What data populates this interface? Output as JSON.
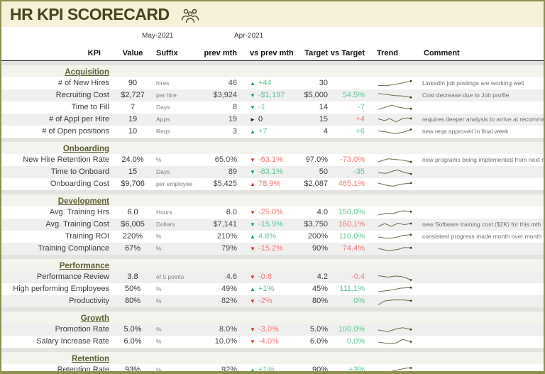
{
  "title": "HR KPI SCORECARD",
  "title_icon": "people-group-icon",
  "dates": {
    "current": "May-2021",
    "previous": "Apr-2021"
  },
  "columns": [
    "KPI",
    "Value",
    "Suffix",
    "prev mth",
    "vs prev mth",
    "Target",
    "vs Target",
    "Trend",
    "Comment"
  ],
  "colors": {
    "titlebar_bg": "#f7f0d9",
    "title_text": "#45451f",
    "border_olive": "#8f8f4f",
    "section_header_text": "#5e5e35",
    "good_arrow": "#00a551",
    "good_text": "#5fc492",
    "bad_arrow": "#e82c2c",
    "bad_text": "#f07878",
    "neutral_text": "#2a2a2a",
    "sparkline": "#6b6b4a",
    "row_shade": "#efefef"
  },
  "chart_data": {
    "type": "table",
    "title": "HR KPI SCORECARD",
    "periods": {
      "current": "May-2021",
      "previous": "Apr-2021"
    },
    "columns": [
      "KPI",
      "Value",
      "Suffix",
      "prev mth",
      "vs prev mth",
      "Target",
      "vs Target",
      "Trend",
      "Comment"
    ]
  },
  "sections": [
    {
      "name": "Acquisition",
      "rows": [
        {
          "kpi": "# of New Hires",
          "value": "90",
          "suffix": "hires",
          "prev": "46",
          "arrow": "up",
          "vs_prev": "+44",
          "vs_prev_tone": "good",
          "target": "30",
          "vs_target": "",
          "vs_target_tone": "good",
          "comment": "LinkedIn job postings are working well",
          "trend": [
            [
              0,
              0.75
            ],
            [
              0.25,
              0.78
            ],
            [
              0.5,
              0.6
            ],
            [
              0.7,
              0.42
            ],
            [
              0.85,
              0.28
            ],
            [
              1,
              0.12
            ]
          ]
        },
        {
          "kpi": "Recruiting Cost",
          "value": "$2,727",
          "suffix": "per hire",
          "prev": "$3,924",
          "arrow": "down",
          "vs_prev": "-$1,197",
          "vs_prev_tone": "good",
          "target": "$5,000",
          "vs_target": "54.5%",
          "vs_target_tone": "good",
          "comment": "Cost decrease due to Job profile",
          "trend": [
            [
              0,
              0.18
            ],
            [
              0.25,
              0.3
            ],
            [
              0.5,
              0.48
            ],
            [
              0.75,
              0.52
            ],
            [
              1,
              0.72
            ]
          ]
        },
        {
          "kpi": "Time to Fill",
          "value": "7",
          "suffix": "Days",
          "prev": "8",
          "arrow": "down",
          "vs_prev": "-1",
          "vs_prev_tone": "good",
          "target": "14",
          "vs_target": "-7",
          "vs_target_tone": "good",
          "comment": "",
          "trend": [
            [
              0,
              0.72
            ],
            [
              0.2,
              0.45
            ],
            [
              0.4,
              0.12
            ],
            [
              0.6,
              0.38
            ],
            [
              0.8,
              0.55
            ],
            [
              1,
              0.62
            ]
          ]
        },
        {
          "kpi": "# of Appl per Hire",
          "value": "19",
          "suffix": "Apps",
          "prev": "19",
          "arrow": "flat",
          "vs_prev": "0",
          "vs_prev_tone": "neutral",
          "target": "15",
          "vs_target": "+4",
          "vs_target_tone": "bad",
          "comment": "requires deeper analysis to arrive at recommendations",
          "trend": [
            [
              0,
              0.35
            ],
            [
              0.2,
              0.6
            ],
            [
              0.35,
              0.3
            ],
            [
              0.55,
              0.78
            ],
            [
              0.75,
              0.3
            ],
            [
              0.9,
              0.22
            ],
            [
              1,
              0.3
            ]
          ]
        },
        {
          "kpi": "# of Open positions",
          "value": "10",
          "suffix": "Reqs",
          "prev": "3",
          "arrow": "up",
          "vs_prev": "+7",
          "vs_prev_tone": "good",
          "target": "4",
          "vs_target": "+6",
          "vs_target_tone": "good",
          "comment": "new reqs approved in final week",
          "trend": [
            [
              0,
              0.35
            ],
            [
              0.25,
              0.5
            ],
            [
              0.5,
              0.72
            ],
            [
              0.75,
              0.55
            ],
            [
              1,
              0.15
            ]
          ]
        }
      ]
    },
    {
      "name": "Onboarding",
      "rows": [
        {
          "kpi": "New Hire Retention Rate",
          "value": "24.0%",
          "suffix": "%",
          "prev": "65.0%",
          "arrow": "down",
          "vs_prev": "-63.1%",
          "vs_prev_tone": "bad",
          "target": "97.0%",
          "vs_target": "-73.0%",
          "vs_target_tone": "bad",
          "comment": "new programs being implemented from next mth",
          "trend": [
            [
              0,
              0.7
            ],
            [
              0.3,
              0.28
            ],
            [
              0.55,
              0.38
            ],
            [
              0.8,
              0.5
            ],
            [
              1,
              0.72
            ]
          ]
        },
        {
          "kpi": "Time to Onboard",
          "value": "15",
          "suffix": "Days",
          "prev": "89",
          "arrow": "down",
          "vs_prev": "-83.1%",
          "vs_prev_tone": "good",
          "target": "50",
          "vs_target": "-35",
          "vs_target_tone": "good",
          "comment": "",
          "trend": [
            [
              0,
              0.55
            ],
            [
              0.25,
              0.62
            ],
            [
              0.45,
              0.3
            ],
            [
              0.6,
              0.15
            ],
            [
              0.8,
              0.5
            ],
            [
              1,
              0.7
            ]
          ]
        },
        {
          "kpi": "Onboarding Cost",
          "value": "$9,706",
          "suffix": "per employee",
          "prev": "$5,425",
          "arrow": "up",
          "vs_prev": "78.9%",
          "vs_prev_tone": "bad",
          "target": "$2,087",
          "vs_target": "465.1%",
          "vs_target_tone": "bad",
          "comment": "",
          "trend": [
            [
              0,
              0.3
            ],
            [
              0.2,
              0.55
            ],
            [
              0.45,
              0.75
            ],
            [
              0.7,
              0.45
            ],
            [
              1,
              0.3
            ]
          ]
        }
      ]
    },
    {
      "name": "Development",
      "rows": [
        {
          "kpi": "Avg. Training Hrs",
          "value": "6.0",
          "suffix": "Hours",
          "prev": "8.0",
          "arrow": "down",
          "vs_prev": "-25.0%",
          "vs_prev_tone": "bad",
          "target": "4.0",
          "vs_target": "150.0%",
          "vs_target_tone": "good",
          "comment": "",
          "trend": [
            [
              0,
              0.8
            ],
            [
              0.25,
              0.55
            ],
            [
              0.45,
              0.6
            ],
            [
              0.65,
              0.3
            ],
            [
              0.8,
              0.2
            ],
            [
              1,
              0.32
            ]
          ]
        },
        {
          "kpi": "Avg. Training Cost",
          "value": "$6,005",
          "suffix": "Dollars",
          "prev": "$7,141",
          "arrow": "down",
          "vs_prev": "-15.9%",
          "vs_prev_tone": "good",
          "target": "$3,750",
          "vs_target": "160.1%",
          "vs_target_tone": "bad",
          "comment": "new Software training cost ($2K) for this mth",
          "trend": [
            [
              0,
              0.7
            ],
            [
              0.2,
              0.3
            ],
            [
              0.4,
              0.7
            ],
            [
              0.6,
              0.25
            ],
            [
              0.8,
              0.45
            ],
            [
              1,
              0.3
            ]
          ]
        },
        {
          "kpi": "Training ROI",
          "value": "220%",
          "suffix": "%",
          "prev": "210%",
          "arrow": "up",
          "vs_prev": "4.8%",
          "vs_prev_tone": "good",
          "target": "200%",
          "vs_target": "110.0%",
          "vs_target_tone": "good",
          "comment": "consistent progress made month over month",
          "trend": [
            [
              0,
              0.5
            ],
            [
              0.25,
              0.68
            ],
            [
              0.5,
              0.6
            ],
            [
              0.75,
              0.28
            ],
            [
              1,
              0.18
            ]
          ]
        },
        {
          "kpi": "Training Compliance",
          "value": "67%",
          "suffix": "%",
          "prev": "79%",
          "arrow": "down",
          "vs_prev": "-15.2%",
          "vs_prev_tone": "bad",
          "target": "90%",
          "vs_target": "74.4%",
          "vs_target_tone": "bad",
          "comment": "",
          "trend": [
            [
              0,
              0.4
            ],
            [
              0.3,
              0.72
            ],
            [
              0.6,
              0.55
            ],
            [
              0.8,
              0.28
            ],
            [
              1,
              0.32
            ]
          ]
        }
      ]
    },
    {
      "name": "Performance",
      "rows": [
        {
          "kpi": "Performance Review",
          "value": "3.8",
          "suffix": "of 5 points",
          "prev": "4.6",
          "arrow": "down",
          "vs_prev": "-0.8",
          "vs_prev_tone": "bad",
          "target": "4.2",
          "vs_target": "-0.4",
          "vs_target_tone": "bad",
          "comment": "",
          "trend": [
            [
              0,
              0.25
            ],
            [
              0.3,
              0.45
            ],
            [
              0.5,
              0.3
            ],
            [
              0.7,
              0.35
            ],
            [
              0.85,
              0.55
            ],
            [
              1,
              0.85
            ]
          ]
        },
        {
          "kpi": "High performing Employees",
          "value": "50%",
          "suffix": "%",
          "prev": "49%",
          "arrow": "up",
          "vs_prev": "+1%",
          "vs_prev_tone": "good",
          "target": "45%",
          "vs_target": "111.1%",
          "vs_target_tone": "good",
          "comment": "",
          "trend": [
            [
              0,
              0.8
            ],
            [
              0.35,
              0.6
            ],
            [
              0.7,
              0.3
            ],
            [
              1,
              0.22
            ]
          ]
        },
        {
          "kpi": "Productivity",
          "value": "80%",
          "suffix": "%",
          "prev": "82%",
          "arrow": "down",
          "vs_prev": "-2%",
          "vs_prev_tone": "bad",
          "target": "80%",
          "vs_target": "0%",
          "vs_target_tone": "good",
          "comment": "",
          "trend": [
            [
              0,
              0.95
            ],
            [
              0.2,
              0.4
            ],
            [
              0.5,
              0.25
            ],
            [
              0.8,
              0.28
            ],
            [
              1,
              0.38
            ]
          ]
        }
      ]
    },
    {
      "name": "Growth",
      "rows": [
        {
          "kpi": "Promotion Rate",
          "value": "5.0%",
          "suffix": "%",
          "prev": "8.0%",
          "arrow": "down",
          "vs_prev": "-3.0%",
          "vs_prev_tone": "bad",
          "target": "5.0%",
          "vs_target": "100.0%",
          "vs_target_tone": "good",
          "comment": "",
          "trend": [
            [
              0,
              0.5
            ],
            [
              0.3,
              0.72
            ],
            [
              0.55,
              0.35
            ],
            [
              0.75,
              0.18
            ],
            [
              1,
              0.42
            ]
          ]
        },
        {
          "kpi": "Salary Increase Rate",
          "value": "6.0%",
          "suffix": "%",
          "prev": "10.0%",
          "arrow": "down",
          "vs_prev": "-4.0%",
          "vs_prev_tone": "bad",
          "target": "6.0%",
          "vs_target": "0.0%",
          "vs_target_tone": "good",
          "comment": "",
          "trend": [
            [
              0,
              0.5
            ],
            [
              0.3,
              0.7
            ],
            [
              0.55,
              0.62
            ],
            [
              0.75,
              0.12
            ],
            [
              1,
              0.45
            ]
          ]
        }
      ]
    },
    {
      "name": "Retention",
      "rows": [
        {
          "kpi": "Retention Rate",
          "value": "93%",
          "suffix": "%",
          "prev": "92%",
          "arrow": "up",
          "vs_prev": "+1%",
          "vs_prev_tone": "good",
          "target": "90%",
          "vs_target": "+3%",
          "vs_target_tone": "good",
          "comment": "",
          "trend": [
            [
              0,
              0.9
            ],
            [
              0.3,
              0.72
            ],
            [
              0.6,
              0.42
            ],
            [
              0.85,
              0.18
            ],
            [
              1,
              0.15
            ]
          ]
        }
      ]
    }
  ]
}
